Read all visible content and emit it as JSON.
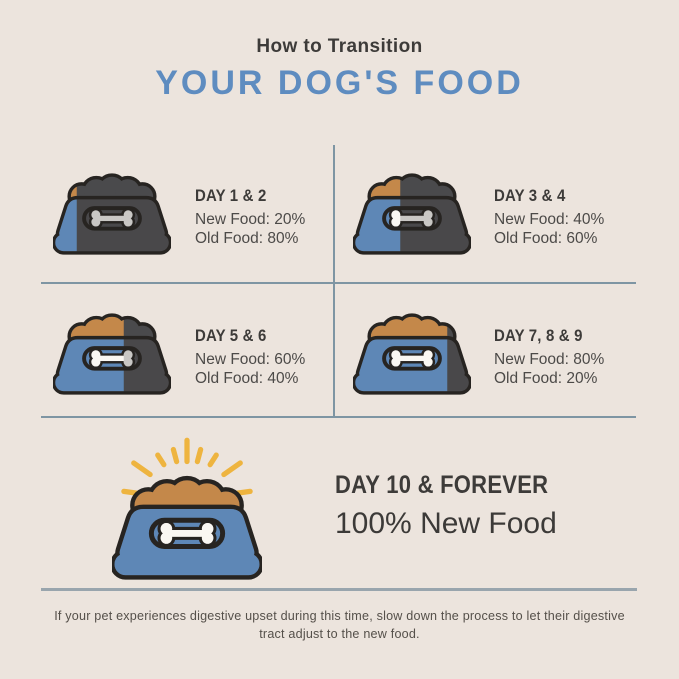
{
  "header": {
    "subtitle": "How to Transition",
    "title": "YOUR DOG'S FOOD"
  },
  "steps": [
    {
      "label": "DAY 1 & 2",
      "new_pct": 20,
      "lines": [
        "New Food: 20%",
        "Old Food: 80%"
      ]
    },
    {
      "label": "DAY 3 & 4",
      "new_pct": 40,
      "lines": [
        "New Food: 40%",
        "Old Food: 60%"
      ]
    },
    {
      "label": "DAY 5 & 6",
      "new_pct": 60,
      "lines": [
        "New Food: 60%",
        "Old Food: 40%"
      ]
    },
    {
      "label": "DAY 7, 8 & 9",
      "new_pct": 80,
      "lines": [
        "New Food: 80%",
        "Old Food: 20%"
      ]
    }
  ],
  "final": {
    "label": "DAY 10 & FOREVER",
    "line": "100% New Food",
    "new_pct": 100,
    "rays": true
  },
  "footer": {
    "note": "If your pet experiences digestive upset during this time, slow down the process to let their digestive tract adjust to the new food."
  },
  "colors": {
    "background": "#ece4dd",
    "title_blue": "#5e8cc0",
    "heading_dark": "#3d3b39",
    "body_text": "#4c4a48",
    "bowl_old_dark": "#49484a",
    "bowl_new_blue": "#5e87b6",
    "food_old_dark": "#4a4a4c",
    "food_new_orange": "#c4884a",
    "outline": "#272421",
    "bone_gray": "#c9c7c4",
    "bone_white": "#faf7f2",
    "rays_yellow": "#eeb43f",
    "divider": "#7e95a3",
    "footer_divider": "#99a5ad"
  },
  "icons": {
    "bowl": "dog-bowl-icon",
    "bone": "bone-icon",
    "rays": "rays-icon"
  }
}
